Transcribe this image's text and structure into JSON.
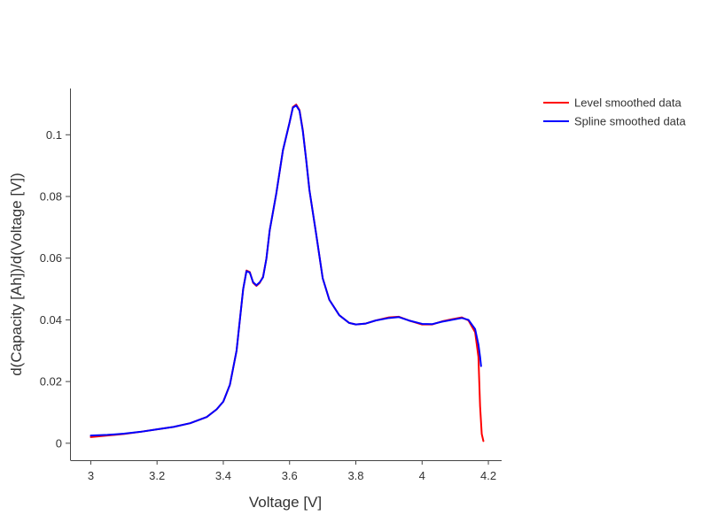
{
  "chart_data": {
    "type": "line",
    "title": "",
    "xlabel": "Voltage [V]",
    "ylabel": "d(Capacity [Ah])/d(Voltage [V])",
    "xlim": [
      2.94,
      4.24
    ],
    "ylim": [
      -0.0055,
      0.115
    ],
    "x_ticks": [
      3,
      3.2,
      3.4,
      3.6,
      3.8,
      4,
      4.2
    ],
    "x_tick_labels": [
      "3",
      "3.2",
      "3.4",
      "3.6",
      "3.8",
      "4",
      "4.2"
    ],
    "y_ticks": [
      0,
      0.02,
      0.04,
      0.06,
      0.08,
      0.1
    ],
    "y_tick_labels": [
      "0",
      "0.02",
      "0.04",
      "0.06",
      "0.08",
      "0.1"
    ],
    "grid": false,
    "legend_position": "top-right",
    "series": [
      {
        "name": "Level smoothed data",
        "color": "#ff0000",
        "x": [
          3.0,
          3.05,
          3.1,
          3.15,
          3.2,
          3.25,
          3.3,
          3.35,
          3.38,
          3.4,
          3.42,
          3.44,
          3.45,
          3.46,
          3.47,
          3.48,
          3.49,
          3.5,
          3.51,
          3.52,
          3.53,
          3.54,
          3.55,
          3.56,
          3.58,
          3.6,
          3.61,
          3.62,
          3.63,
          3.64,
          3.65,
          3.66,
          3.68,
          3.7,
          3.72,
          3.75,
          3.78,
          3.8,
          3.83,
          3.86,
          3.9,
          3.93,
          3.96,
          4.0,
          4.03,
          4.06,
          4.09,
          4.12,
          4.14,
          4.16,
          4.17,
          4.175,
          4.18,
          4.185
        ],
        "y": [
          0.002,
          0.0025,
          0.003,
          0.0037,
          0.0045,
          0.0053,
          0.0065,
          0.0085,
          0.011,
          0.0135,
          0.019,
          0.03,
          0.04,
          0.05,
          0.056,
          0.0555,
          0.052,
          0.051,
          0.052,
          0.054,
          0.0598,
          0.069,
          0.075,
          0.081,
          0.095,
          0.104,
          0.109,
          0.1098,
          0.108,
          0.1015,
          0.092,
          0.082,
          0.068,
          0.0535,
          0.0465,
          0.0415,
          0.039,
          0.0385,
          0.0388,
          0.0398,
          0.0408,
          0.041,
          0.0398,
          0.0385,
          0.0385,
          0.0395,
          0.0402,
          0.0408,
          0.0398,
          0.036,
          0.028,
          0.012,
          0.003,
          0.0007
        ]
      },
      {
        "name": "Spline smoothed data",
        "color": "#0000ff",
        "x": [
          3.0,
          3.05,
          3.1,
          3.15,
          3.2,
          3.25,
          3.3,
          3.35,
          3.38,
          3.4,
          3.42,
          3.44,
          3.45,
          3.46,
          3.47,
          3.48,
          3.49,
          3.5,
          3.51,
          3.52,
          3.53,
          3.54,
          3.55,
          3.56,
          3.58,
          3.6,
          3.61,
          3.62,
          3.63,
          3.64,
          3.65,
          3.66,
          3.68,
          3.7,
          3.72,
          3.75,
          3.78,
          3.8,
          3.83,
          3.86,
          3.9,
          3.93,
          3.96,
          4.0,
          4.03,
          4.06,
          4.09,
          4.12,
          4.14,
          4.16,
          4.17,
          4.175,
          4.178
        ],
        "y": [
          0.0025,
          0.0027,
          0.0031,
          0.0037,
          0.0045,
          0.0053,
          0.0065,
          0.0085,
          0.011,
          0.0135,
          0.019,
          0.03,
          0.04,
          0.05,
          0.0558,
          0.0553,
          0.0522,
          0.0512,
          0.0522,
          0.0538,
          0.0598,
          0.069,
          0.075,
          0.081,
          0.095,
          0.104,
          0.1088,
          0.1095,
          0.1078,
          0.1012,
          0.092,
          0.082,
          0.068,
          0.0535,
          0.0465,
          0.0415,
          0.039,
          0.0385,
          0.0388,
          0.0398,
          0.0406,
          0.0409,
          0.0398,
          0.0387,
          0.0386,
          0.0394,
          0.04,
          0.0406,
          0.04,
          0.037,
          0.032,
          0.028,
          0.025
        ]
      }
    ]
  }
}
